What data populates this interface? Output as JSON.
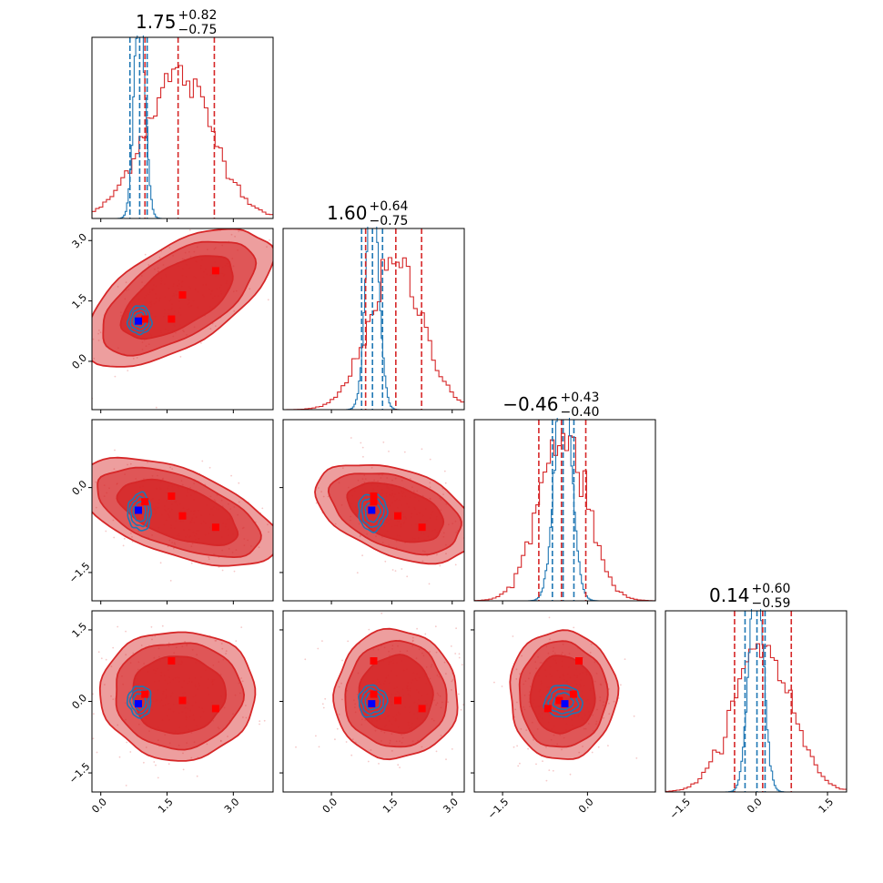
{
  "chart_data": {
    "type": "corner",
    "colors": {
      "red": "#d62728",
      "blue": "#1f77b4",
      "marker_blue": "#0000ff",
      "marker_red": "#ff0000"
    },
    "parameters": [
      {
        "range": [
          -0.2,
          3.9
        ],
        "ticks": [
          {
            "v": 0.0,
            "label": "0.0"
          },
          {
            "v": 1.5,
            "label": "1.5"
          },
          {
            "v": 3.0,
            "label": "3.0"
          }
        ],
        "title": {
          "median": "1.75",
          "plus": "+0.82",
          "minus": "−0.75"
        },
        "red_quantiles": [
          1.0,
          1.75,
          2.57
        ],
        "blue_quantiles": [
          0.66,
          0.88,
          1.05
        ],
        "red_dist": {
          "mean": 1.75,
          "sd": 0.78
        },
        "blue_dist": {
          "mean": 0.88,
          "sd": 0.12
        },
        "red_peak_rel": 0.8,
        "blue_peak_rel": 1.0
      },
      {
        "range": [
          -1.2,
          3.3
        ],
        "ticks": [
          {
            "v": 0.0,
            "label": "0.0"
          },
          {
            "v": 1.5,
            "label": "1.5"
          },
          {
            "v": 3.0,
            "label": "3.0"
          }
        ],
        "title": {
          "median": "1.60",
          "plus": "+0.64",
          "minus": "−0.75"
        },
        "red_quantiles": [
          0.85,
          1.6,
          2.24
        ],
        "blue_quantiles": [
          0.75,
          1.02,
          1.27
        ],
        "red_dist": {
          "mean": 1.6,
          "sd": 0.68
        },
        "blue_dist": {
          "mean": 1.02,
          "sd": 0.16
        },
        "red_peak_rel": 0.8,
        "blue_peak_rel": 1.0
      },
      {
        "range": [
          -2.0,
          1.2
        ],
        "ticks": [
          {
            "v": -1.5,
            "label": "−1.5"
          },
          {
            "v": 0.0,
            "label": "0.0"
          }
        ],
        "title": {
          "median": "−0.46",
          "plus": "+0.43",
          "minus": "−0.40"
        },
        "red_quantiles": [
          -0.86,
          -0.46,
          -0.03
        ],
        "blue_quantiles": [
          -0.62,
          -0.43,
          -0.24
        ],
        "red_dist": {
          "mean": -0.44,
          "sd": 0.42
        },
        "blue_dist": {
          "mean": -0.43,
          "sd": 0.15
        },
        "red_peak_rel": 0.95,
        "blue_peak_rel": 1.0
      },
      {
        "range": [
          -1.9,
          1.9
        ],
        "ticks": [
          {
            "v": -1.5,
            "label": "−1.5"
          },
          {
            "v": 0.0,
            "label": "0.0"
          },
          {
            "v": 1.5,
            "label": "1.5"
          }
        ],
        "title": {
          "median": "0.14",
          "plus": "+0.60",
          "minus": "−0.59"
        },
        "red_quantiles": [
          -0.45,
          0.14,
          0.74
        ],
        "blue_quantiles": [
          -0.23,
          0.02,
          0.19
        ],
        "red_dist": {
          "mean": 0.14,
          "sd": 0.6
        },
        "blue_dist": {
          "mean": 0.0,
          "sd": 0.15
        },
        "red_peak_rel": 0.82,
        "blue_peak_rel": 1.0
      }
    ],
    "red_markers": [
      [
        1.0,
        1.05,
        -0.25,
        0.15
      ],
      [
        1.6,
        1.05,
        -0.15,
        0.85
      ],
      [
        1.85,
        1.65,
        -0.5,
        0.02
      ],
      [
        2.6,
        2.25,
        -0.7,
        -0.15
      ]
    ],
    "blue_marker": [
      0.85,
      1.0,
      -0.4,
      -0.05
    ],
    "pairs": [
      {
        "i": 1,
        "j": 0,
        "shape": "elongated"
      },
      {
        "i": 2,
        "j": 0,
        "shape": "elongated"
      },
      {
        "i": 3,
        "j": 0,
        "shape": "broad"
      },
      {
        "i": 2,
        "j": 1,
        "shape": "elongated"
      },
      {
        "i": 3,
        "j": 1,
        "shape": "broad"
      },
      {
        "i": 3,
        "j": 2,
        "shape": "round"
      }
    ]
  }
}
